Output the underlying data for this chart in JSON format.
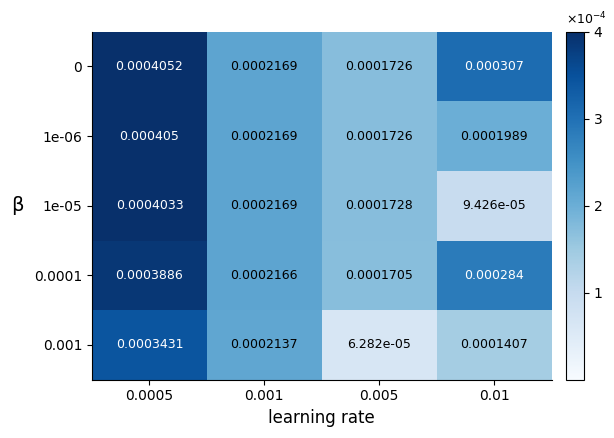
{
  "values": [
    [
      0.0004052,
      0.0002169,
      0.0001726,
      0.000307
    ],
    [
      0.000405,
      0.0002169,
      0.0001726,
      0.0001989
    ],
    [
      0.0004033,
      0.0002169,
      0.0001728,
      9.426e-05
    ],
    [
      0.0003886,
      0.0002166,
      0.0001705,
      0.000284
    ],
    [
      0.0003431,
      0.0002137,
      6.282e-05,
      0.0001407
    ]
  ],
  "cell_labels": [
    [
      "0.0004052",
      "0.0002169",
      "0.0001726",
      "0.000307"
    ],
    [
      "0.000405",
      "0.0002169",
      "0.0001726",
      "0.0001989"
    ],
    [
      "0.0004033",
      "0.0002169",
      "0.0001728",
      "9.426e-05"
    ],
    [
      "0.0003886",
      "0.0002166",
      "0.0001705",
      "0.000284"
    ],
    [
      "0.0003431",
      "0.0002137",
      "6.282e-05",
      "0.0001407"
    ]
  ],
  "x_labels": [
    "0.0005",
    "0.001",
    "0.005",
    "0.01"
  ],
  "y_labels": [
    "0",
    "1e-06",
    "1e-05",
    "0.0001",
    "0.001"
  ],
  "xlabel": "learning rate",
  "ylabel": "β",
  "colormap": "Blues",
  "vmin": 0,
  "vmax": 0.0004,
  "cbar_ticks": [
    0.0001,
    0.0002,
    0.0003,
    0.0004
  ],
  "cbar_ticklabels": [
    "1",
    "2",
    "3",
    "4"
  ],
  "figsize": [
    6.14,
    4.38
  ],
  "dpi": 100
}
